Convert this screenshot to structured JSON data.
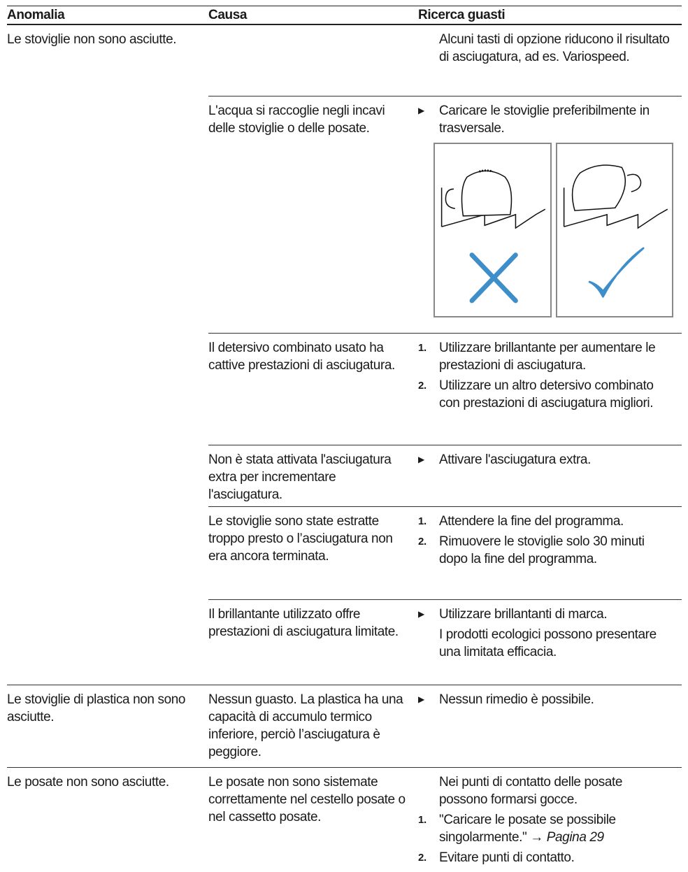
{
  "header": {
    "columns": [
      "Anomalia",
      "Causa",
      "Ricerca guasti"
    ]
  },
  "groups": [
    {
      "problem": "Le stoviglie non sono asciutte.",
      "rows": [
        {
          "cause": "",
          "remedy": [
            {
              "text": "Alcuni tasti di opzione riducono il risultato di asciugatura, ad es. Variospeed."
            }
          ]
        },
        {
          "cause": "L'acqua si raccoglie negli incavi delle stoviglie o delle posate.",
          "remedy": [
            {
              "text": "Caricare le stoviglie preferibilmente in trasversale."
            }
          ]
        },
        {
          "cause": "Il detersivo combinato usato ha cattive prestazioni di asciugatura.",
          "remedy": [
            {
              "number": "1.",
              "text": "Utilizzare brillantante per aumentare le prestazioni di asciugatura."
            },
            {
              "number": "2.",
              "text": "Utilizzare un altro detersivo combinato con prestazioni di asciugatura migliori."
            }
          ]
        },
        {
          "cause": "Non è stata attivata l'asciugatura extra per incrementare l'asciugatura.",
          "remedy": [
            {
              "text": "Attivare l'asciugatura extra."
            }
          ]
        },
        {
          "cause": "Le stoviglie sono state estratte troppo presto o l’asciugatura non era ancora terminata.",
          "remedy": [
            {
              "number": "1.",
              "text": "Attendere la fine del programma."
            },
            {
              "number": "2.",
              "text": "Rimuovere le stoviglie solo 30 minuti dopo la fine del programma."
            }
          ]
        },
        {
          "cause": "Il brillantante utilizzato offre prestazioni di asciugatura limitate.",
          "remedy": [
            {
              "text": "Utilizzare brillantanti di marca."
            },
            {
              "text": "I prodotti ecologici possono presentare una limitata efficacia."
            }
          ]
        }
      ]
    },
    {
      "problem": "Le stoviglie di plastica non sono asciutte.",
      "rows": [
        {
          "cause": "Nessun guasto. La plastica ha una capacità di accumulo termico inferiore, perciò l’asciugatura è peggiore.",
          "remedy": [
            {
              "text": "Nessun rimedio è possibile."
            }
          ]
        }
      ]
    },
    {
      "problem": "Le posate non sono asciutte.",
      "rows": [
        {
          "cause": "Le posate non sono sistemate correttamente nel cestello posate o nel cassetto posate.",
          "remedy": [
            {
              "text": "Nei punti di contatto delle posate possono formarsi gocce."
            },
            {
              "number": "1.",
              "text": "\"Caricare le posate se possibile singolarmente.\"",
              "link": "Pagina 29"
            },
            {
              "number": "2.",
              "text": "Evitare punti di contatto."
            }
          ]
        }
      ]
    }
  ]
}
